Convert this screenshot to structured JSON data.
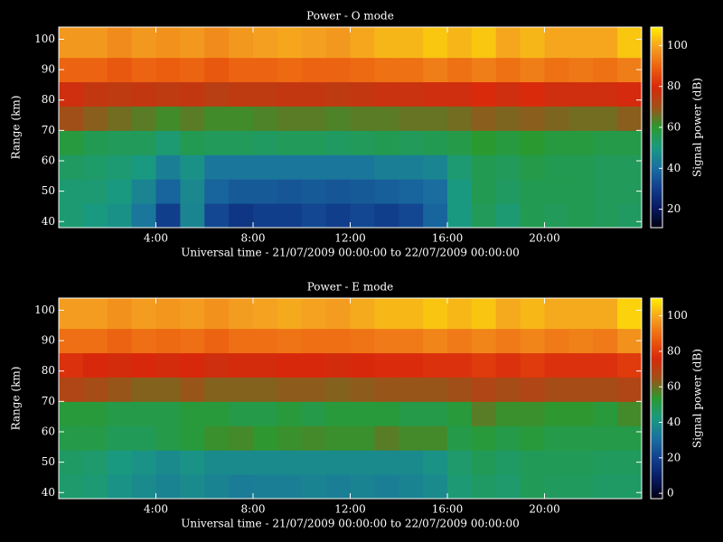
{
  "chart_data": [
    {
      "type": "heatmap",
      "title": "Power - O mode",
      "xlabel": "Universal time - 21/07/2009 00:00:00 to 22/07/2009 00:00:00",
      "ylabel": "Range (km)",
      "colorbar_label": "Signal power (dB)",
      "x": [
        0,
        1,
        2,
        3,
        4,
        5,
        6,
        7,
        8,
        9,
        10,
        11,
        12,
        13,
        14,
        15,
        16,
        17,
        18,
        19,
        20,
        21,
        22,
        23,
        24
      ],
      "y": [
        38,
        46,
        54,
        62,
        70,
        78,
        86,
        94,
        104
      ],
      "z": [
        [
          52,
          50,
          48,
          42,
          30,
          45,
          32,
          28,
          30,
          30,
          32,
          30,
          32,
          30,
          32,
          38,
          50,
          55,
          52,
          56,
          55,
          56,
          55,
          54
        ],
        [
          52,
          52,
          50,
          45,
          38,
          46,
          38,
          36,
          36,
          35,
          36,
          35,
          36,
          37,
          38,
          40,
          50,
          56,
          54,
          56,
          56,
          56,
          55,
          55
        ],
        [
          54,
          53,
          52,
          50,
          44,
          48,
          42,
          42,
          42,
          42,
          42,
          42,
          42,
          44,
          44,
          45,
          52,
          56,
          55,
          57,
          56,
          56,
          55,
          55
        ],
        [
          58,
          56,
          55,
          55,
          52,
          56,
          55,
          55,
          54,
          55,
          55,
          54,
          55,
          56,
          55,
          56,
          57,
          60,
          58,
          60,
          58,
          58,
          57,
          57
        ],
        [
          70,
          68,
          66,
          64,
          62,
          64,
          62,
          62,
          63,
          64,
          64,
          63,
          64,
          64,
          65,
          65,
          66,
          68,
          67,
          68,
          67,
          66,
          66,
          68
        ],
        [
          78,
          76,
          75,
          76,
          75,
          76,
          74,
          75,
          75,
          76,
          76,
          75,
          76,
          77,
          77,
          78,
          78,
          80,
          78,
          80,
          78,
          78,
          78,
          79
        ],
        [
          90,
          90,
          88,
          90,
          89,
          90,
          88,
          90,
          90,
          91,
          90,
          90,
          91,
          92,
          92,
          94,
          92,
          94,
          92,
          94,
          92,
          93,
          92,
          94
        ],
        [
          98,
          98,
          96,
          98,
          97,
          98,
          96,
          98,
          99,
          100,
          99,
          98,
          100,
          102,
          102,
          104,
          102,
          104,
          100,
          102,
          100,
          100,
          100,
          104
        ]
      ],
      "xlim": [
        0,
        24
      ],
      "ylim": [
        38,
        104
      ],
      "zlim": [
        11,
        109
      ],
      "xticks": [
        {
          "value": 4,
          "label": "4:00"
        },
        {
          "value": 8,
          "label": "8:00"
        },
        {
          "value": 12,
          "label": "12:00"
        },
        {
          "value": 16,
          "label": "16:00"
        },
        {
          "value": 20,
          "label": "20:00"
        }
      ],
      "yticks": [
        40,
        50,
        60,
        70,
        80,
        90,
        100
      ],
      "zticks": [
        20,
        40,
        60,
        80,
        100
      ],
      "colormap": [
        "#000010",
        "#081a60",
        "#12408e",
        "#1a70a0",
        "#1a9a80",
        "#2a9a30",
        "#a05018",
        "#d8280c",
        "#ec6010",
        "#f4a020",
        "#ffee00"
      ]
    },
    {
      "type": "heatmap",
      "title": "Power - E mode",
      "xlabel": "Universal time - 21/07/2009 00:00:00 to 22/07/2009 00:00:00",
      "ylabel": "Range (km)",
      "colorbar_label": "Signal power (dB)",
      "x": [
        0,
        1,
        2,
        3,
        4,
        5,
        6,
        7,
        8,
        9,
        10,
        11,
        12,
        13,
        14,
        15,
        16,
        17,
        18,
        19,
        20,
        21,
        22,
        23,
        24
      ],
      "y": [
        38,
        46,
        54,
        62,
        70,
        78,
        86,
        94,
        104
      ],
      "z": [
        [
          45,
          44,
          40,
          38,
          36,
          38,
          36,
          34,
          35,
          35,
          36,
          35,
          36,
          35,
          36,
          38,
          44,
          46,
          45,
          48,
          47,
          47,
          46,
          46
        ],
        [
          46,
          45,
          42,
          40,
          38,
          40,
          38,
          38,
          38,
          38,
          38,
          38,
          38,
          38,
          38,
          40,
          45,
          48,
          46,
          48,
          48,
          48,
          47,
          47
        ],
        [
          50,
          50,
          48,
          48,
          50,
          52,
          55,
          56,
          54,
          55,
          56,
          55,
          55,
          58,
          56,
          56,
          50,
          52,
          50,
          52,
          50,
          50,
          50,
          50
        ],
        [
          52,
          52,
          50,
          50,
          50,
          52,
          52,
          50,
          50,
          52,
          50,
          52,
          52,
          52,
          50,
          50,
          52,
          58,
          55,
          55,
          54,
          54,
          52,
          56
        ],
        [
          68,
          66,
          64,
          62,
          62,
          64,
          62,
          62,
          62,
          63,
          63,
          62,
          63,
          64,
          64,
          64,
          65,
          68,
          66,
          68,
          66,
          66,
          66,
          68
        ],
        [
          78,
          76,
          75,
          76,
          75,
          76,
          74,
          75,
          75,
          76,
          76,
          75,
          76,
          77,
          77,
          78,
          78,
          80,
          78,
          80,
          78,
          78,
          78,
          80
        ],
        [
          90,
          90,
          88,
          90,
          89,
          90,
          88,
          90,
          90,
          91,
          90,
          90,
          91,
          92,
          92,
          94,
          92,
          94,
          92,
          94,
          92,
          93,
          92,
          96
        ],
        [
          98,
          98,
          96,
          98,
          97,
          98,
          96,
          98,
          99,
          100,
          99,
          98,
          100,
          102,
          102,
          104,
          102,
          104,
          100,
          102,
          100,
          100,
          100,
          106
        ]
      ],
      "xlim": [
        0,
        24
      ],
      "ylim": [
        38,
        104
      ],
      "zlim": [
        -3,
        110
      ],
      "xticks": [
        {
          "value": 4,
          "label": "4:00"
        },
        {
          "value": 8,
          "label": "8:00"
        },
        {
          "value": 12,
          "label": "12:00"
        },
        {
          "value": 16,
          "label": "16:00"
        },
        {
          "value": 20,
          "label": "20:00"
        }
      ],
      "yticks": [
        40,
        50,
        60,
        70,
        80,
        90,
        100
      ],
      "zticks": [
        0,
        20,
        40,
        60,
        80,
        100
      ],
      "colormap": [
        "#000010",
        "#081a60",
        "#12408e",
        "#1a70a0",
        "#1a9a80",
        "#2a9a30",
        "#a05018",
        "#d8280c",
        "#ec6010",
        "#f4a020",
        "#ffee00"
      ]
    }
  ]
}
